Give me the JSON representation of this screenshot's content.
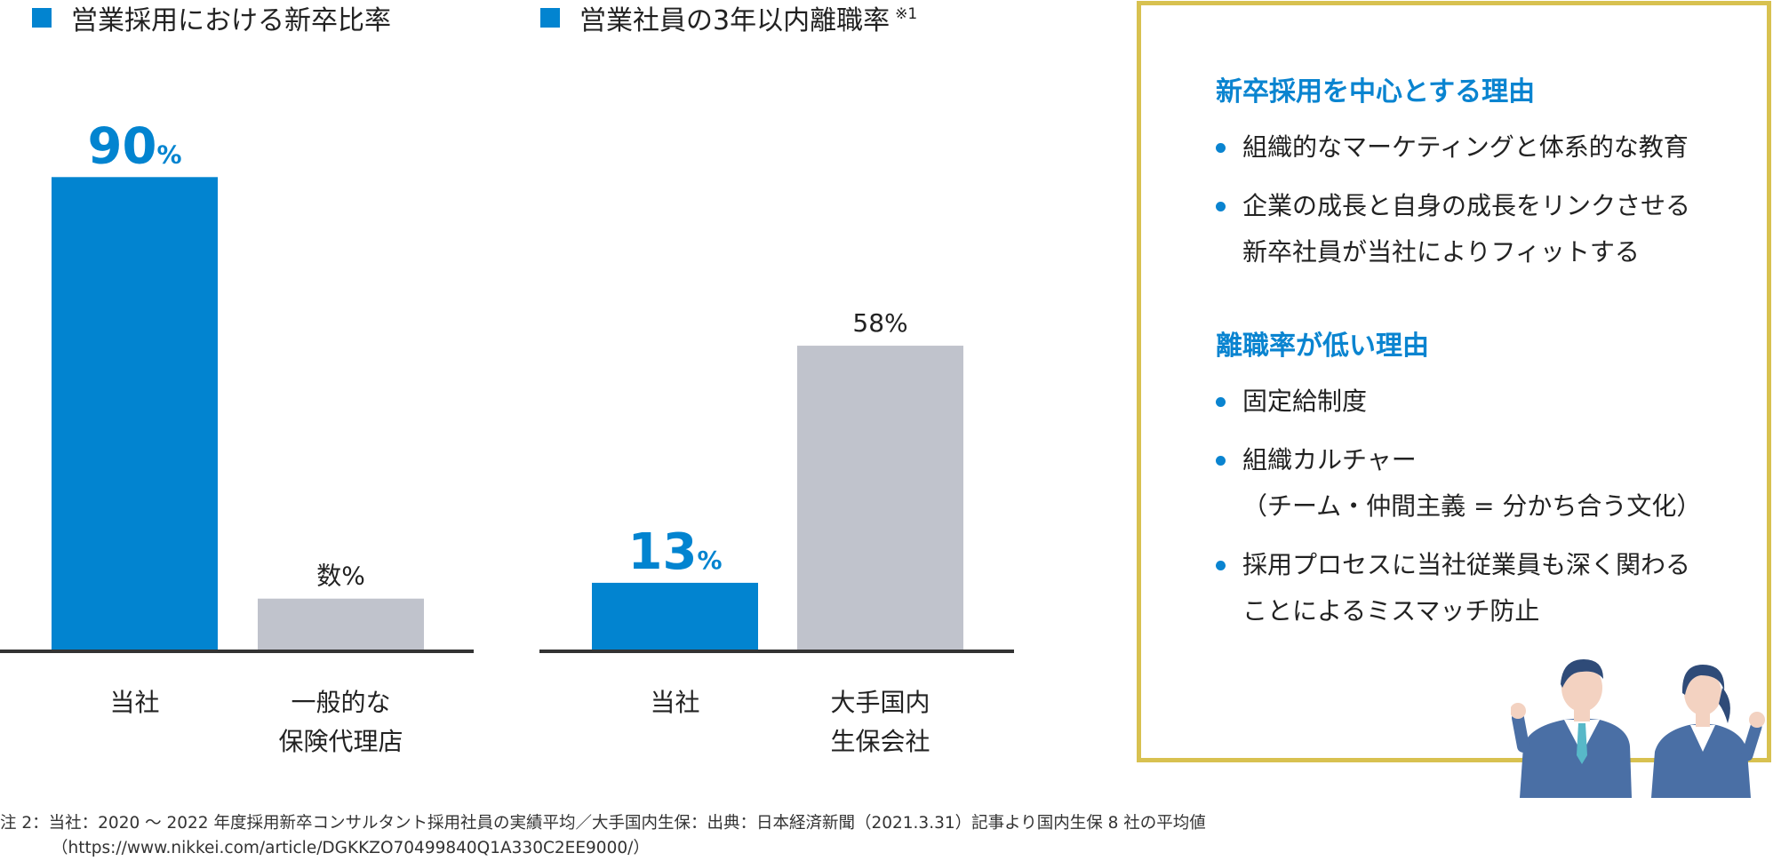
{
  "chart_data": [
    {
      "type": "bar",
      "title": "営業採用における新卒比率",
      "categories": [
        "当社",
        "一般的な\n保険代理店"
      ],
      "values": [
        90,
        10
      ],
      "value_labels": [
        "90",
        "数%"
      ],
      "value_unit": "%",
      "ylim": [
        0,
        100
      ],
      "colors": [
        "#0284d0",
        "#c0c3cc"
      ],
      "grid": false
    },
    {
      "type": "bar",
      "title": "営業社員の3年以内離職率",
      "title_note": "※1",
      "categories": [
        "当社",
        "大手国内\n生保会社"
      ],
      "values": [
        13,
        58
      ],
      "value_labels": [
        "13",
        "58%"
      ],
      "value_unit": "%",
      "ylim": [
        0,
        100
      ],
      "colors": [
        "#0284d0",
        "#c0c3cc"
      ],
      "grid": false
    }
  ],
  "panel": {
    "sections": [
      {
        "heading": "新卒採用を中心とする理由",
        "items": [
          [
            "組織的なマーケティングと体系的な教育"
          ],
          [
            "企業の成長と自身の成長をリンクさせる",
            "新卒社員が当社によりフィットする"
          ]
        ]
      },
      {
        "heading": "離職率が低い理由",
        "items": [
          [
            "固定給制度"
          ],
          [
            "組織カルチャー",
            "（チーム・仲間主義 = 分かち合う文化）"
          ],
          [
            "採用プロセスに当社従業員も深く関わる",
            "ことによるミスマッチ防止"
          ]
        ]
      }
    ],
    "border_color": "#d8c150",
    "heading_color": "#0a84d0",
    "illustration": "two-business-people-cheering-icon"
  },
  "footnote": {
    "line1": "注 2：当社：2020 〜 2022 年度採用新卒コンサルタント採用社員の実績平均／大手国内生保：出典：日本経済新聞（2021.3.31）記事より国内生保 8 社の平均値",
    "line2": "（https://www.nikkei.com/article/DGKKZO70499840Q1A330C2EE9000/）"
  }
}
